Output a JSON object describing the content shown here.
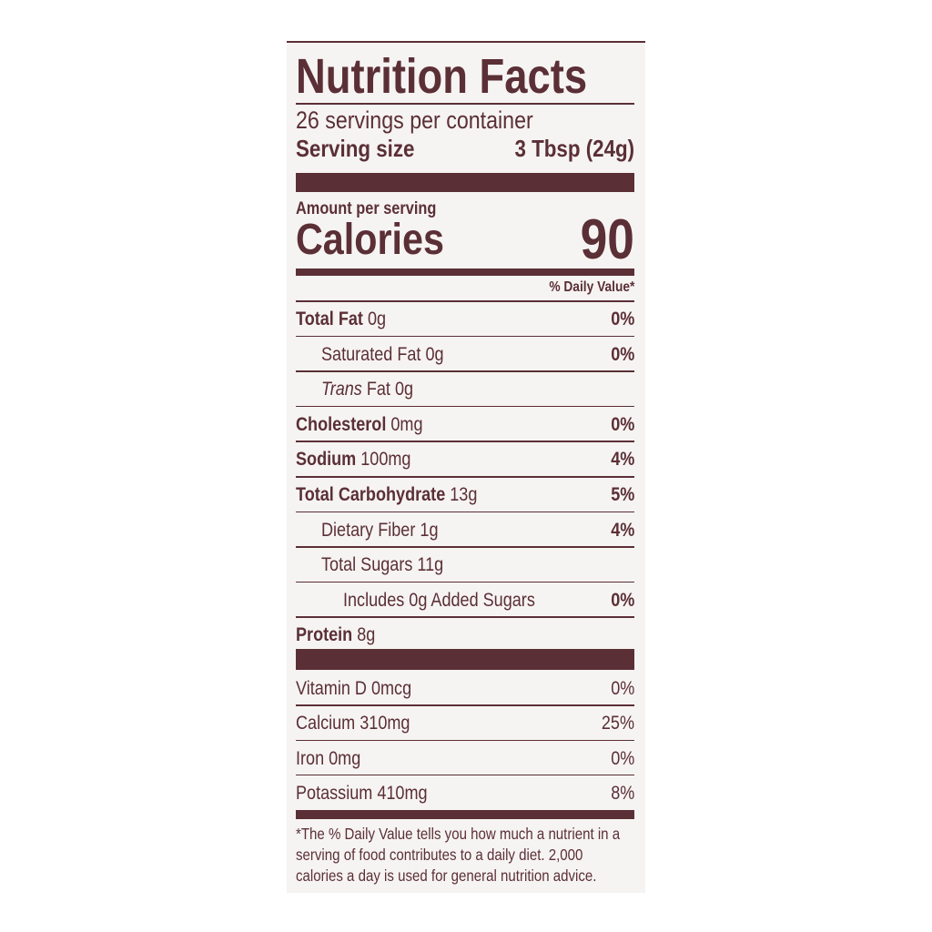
{
  "title": "Nutrition Facts",
  "servings_per_container": "26 servings per container",
  "serving_size_label": "Serving size",
  "serving_size_value": "3 Tbsp (24g)",
  "amount_per_serving": "Amount per serving",
  "calories_label": "Calories",
  "calories_value": "90",
  "daily_value_header": "% Daily Value*",
  "nutrients": [
    {
      "label": "Total Fat",
      "amount": "0g",
      "dv": "0%"
    },
    {
      "label": "Saturated Fat",
      "amount": "0g",
      "dv": "0%"
    },
    {
      "label": "Trans",
      "label2": "Fat",
      "amount": "0g",
      "dv": ""
    },
    {
      "label": "Cholesterol",
      "amount": "0mg",
      "dv": "0%"
    },
    {
      "label": "Sodium",
      "amount": "100mg",
      "dv": "4%"
    },
    {
      "label": "Total Carbohydrate",
      "amount": "13g",
      "dv": "5%"
    },
    {
      "label": "Dietary Fiber",
      "amount": "1g",
      "dv": "4%"
    },
    {
      "label": "Total Sugars",
      "amount": "11g",
      "dv": ""
    },
    {
      "label": "Includes 0g Added Sugars",
      "amount": "",
      "dv": "0%"
    },
    {
      "label": "Protein",
      "amount": "8g",
      "dv": ""
    }
  ],
  "vitamins": [
    {
      "label": "Vitamin D 0mcg",
      "dv": "0%"
    },
    {
      "label": "Calcium 310mg",
      "dv": "25%"
    },
    {
      "label": "Iron 0mg",
      "dv": "0%"
    },
    {
      "label": "Potassium 410mg",
      "dv": "8%"
    }
  ],
  "footnote": "*The % Daily Value tells you how much a nutrient in a serving of food contributes to a daily diet. 2,000 calories a day is used for general nutrition advice.",
  "colors": {
    "ink": "#5b2f36",
    "label_bg": "#f6f4f2"
  }
}
